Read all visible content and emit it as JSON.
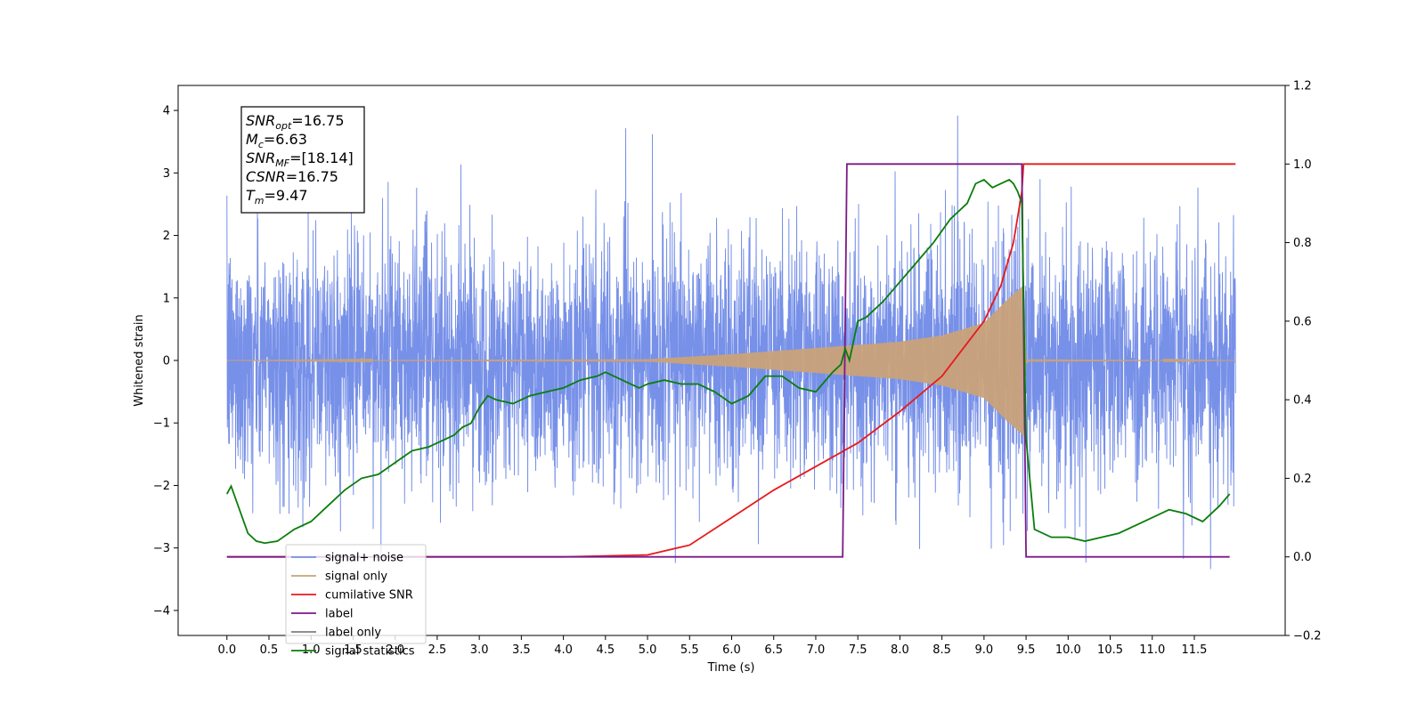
{
  "chart_data": {
    "type": "line",
    "xlabel": "Time (s)",
    "ylabel": "Whitened strain",
    "xlim": [
      -0.58,
      12.58
    ],
    "ylim_left": [
      -4.4,
      4.4
    ],
    "ylim_right": [
      -0.2,
      1.2
    ],
    "x_ticks": [
      0.0,
      0.5,
      1.0,
      1.5,
      2.0,
      2.5,
      3.0,
      3.5,
      4.0,
      4.5,
      5.0,
      5.5,
      6.0,
      6.5,
      7.0,
      7.5,
      8.0,
      8.5,
      9.0,
      9.5,
      10.0,
      10.5,
      11.0,
      11.5
    ],
    "x_tick_labels": [
      "0.0",
      "0.5",
      "1.0",
      "1.5",
      "2.0",
      "2.5",
      "3.0",
      "3.5",
      "4.0",
      "4.5",
      "5.0",
      "5.5",
      "6.0",
      "6.5",
      "7.0",
      "7.5",
      "8.0",
      "8.5",
      "9.0",
      "9.5",
      "10.0",
      "10.5",
      "11.0",
      "11.5"
    ],
    "y_ticks_left": [
      -4,
      -3,
      -2,
      -1,
      0,
      1,
      2,
      3,
      4
    ],
    "y_tick_labels_left": [
      "−4",
      "−3",
      "−2",
      "−1",
      "0",
      "1",
      "2",
      "3",
      "4"
    ],
    "y_ticks_right": [
      -0.2,
      0.0,
      0.2,
      0.4,
      0.6,
      0.8,
      1.0,
      1.2
    ],
    "y_tick_labels_right": [
      "−0.2",
      "0.0",
      "0.2",
      "0.4",
      "0.6",
      "0.8",
      "1.0",
      "1.2"
    ],
    "grid": false,
    "legend_placement": "lower-left",
    "annotation": {
      "lines": [
        {
          "main": "SNR",
          "sub": "opt",
          "value": "=16.75"
        },
        {
          "main": "M",
          "sub": "c",
          "value": "=6.63"
        },
        {
          "main": "SNR",
          "sub": "MF",
          "value": "=[18.14]"
        },
        {
          "main": "CSNR",
          "sub": "",
          "value": "=16.75"
        },
        {
          "main": "T",
          "sub": "m",
          "value": "=9.47"
        }
      ]
    },
    "series": [
      {
        "name": "signal+ noise",
        "axis": "left",
        "color": "#7790e8",
        "style": "noise",
        "x_range": [
          0.0,
          11.99
        ],
        "noise_sigma": 0.95,
        "spike_max": 4.1,
        "spike_min": -3.85
      },
      {
        "name": "signal only",
        "axis": "left",
        "color": "#c9a27a",
        "style": "chirp",
        "envelope": {
          "t": [
            0.0,
            5.0,
            6.0,
            7.0,
            7.5,
            8.0,
            8.5,
            9.0,
            9.3,
            9.47,
            9.5,
            11.99
          ],
          "amp": [
            0.0,
            0.02,
            0.1,
            0.2,
            0.25,
            0.3,
            0.4,
            0.6,
            1.0,
            1.2,
            0.02,
            0.0
          ]
        }
      },
      {
        "name": "cumilative SNR",
        "axis": "right",
        "color": "#e8191b",
        "x": [
          0.0,
          4.0,
          5.0,
          5.5,
          6.0,
          6.5,
          7.0,
          7.5,
          8.0,
          8.5,
          9.0,
          9.2,
          9.35,
          9.45,
          9.47,
          11.99
        ],
        "values": [
          0.0,
          0.0,
          0.005,
          0.03,
          0.1,
          0.17,
          0.23,
          0.29,
          0.37,
          0.46,
          0.6,
          0.69,
          0.8,
          0.93,
          1.0,
          1.0
        ]
      },
      {
        "name": "label",
        "axis": "right",
        "color": "#7a1a86",
        "x": [
          0.0,
          7.32,
          7.37,
          9.45,
          9.5,
          11.92
        ],
        "values": [
          0.0,
          0.0,
          1.0,
          1.0,
          0.0,
          0.0
        ]
      },
      {
        "name": "label only",
        "axis": "right",
        "color": "#7f7f7f",
        "x": [],
        "values": []
      },
      {
        "name": "signal statistics",
        "axis": "right",
        "color": "#0a7d0a",
        "x": [
          0.0,
          0.05,
          0.15,
          0.25,
          0.35,
          0.45,
          0.6,
          0.8,
          1.0,
          1.2,
          1.4,
          1.6,
          1.8,
          2.0,
          2.2,
          2.4,
          2.5,
          2.6,
          2.7,
          2.8,
          2.9,
          3.0,
          3.1,
          3.2,
          3.4,
          3.6,
          3.8,
          4.0,
          4.2,
          4.4,
          4.5,
          4.7,
          4.9,
          5.0,
          5.2,
          5.4,
          5.6,
          5.8,
          6.0,
          6.2,
          6.4,
          6.6,
          6.8,
          7.0,
          7.2,
          7.3,
          7.35,
          7.4,
          7.45,
          7.5,
          7.6,
          7.8,
          8.0,
          8.2,
          8.4,
          8.6,
          8.8,
          8.9,
          9.0,
          9.1,
          9.2,
          9.3,
          9.35,
          9.4,
          9.45,
          9.5,
          9.6,
          9.8,
          10.0,
          10.2,
          10.4,
          10.6,
          10.8,
          11.0,
          11.2,
          11.4,
          11.6,
          11.8,
          11.92
        ],
        "values": [
          0.16,
          0.18,
          0.12,
          0.06,
          0.04,
          0.035,
          0.04,
          0.07,
          0.09,
          0.13,
          0.17,
          0.2,
          0.21,
          0.24,
          0.27,
          0.28,
          0.29,
          0.3,
          0.31,
          0.33,
          0.34,
          0.38,
          0.41,
          0.4,
          0.39,
          0.41,
          0.42,
          0.43,
          0.45,
          0.46,
          0.47,
          0.45,
          0.43,
          0.44,
          0.45,
          0.44,
          0.44,
          0.42,
          0.39,
          0.41,
          0.46,
          0.46,
          0.43,
          0.42,
          0.47,
          0.49,
          0.53,
          0.5,
          0.55,
          0.6,
          0.61,
          0.65,
          0.7,
          0.75,
          0.8,
          0.86,
          0.9,
          0.95,
          0.96,
          0.94,
          0.95,
          0.96,
          0.95,
          0.93,
          0.9,
          0.3,
          0.07,
          0.05,
          0.05,
          0.04,
          0.05,
          0.06,
          0.08,
          0.1,
          0.12,
          0.11,
          0.09,
          0.13,
          0.16
        ]
      }
    ]
  }
}
